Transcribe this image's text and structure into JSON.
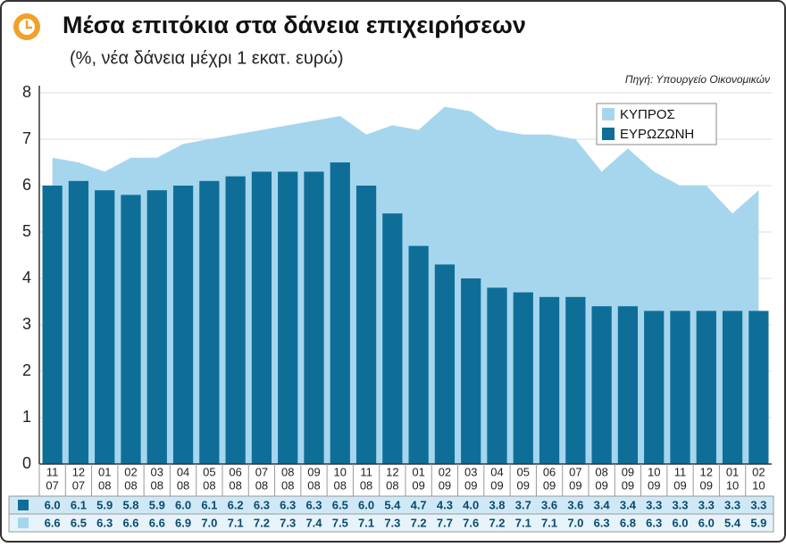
{
  "chart_data": {
    "type": "bar",
    "title": "Μέσα επιτόκια στα δάνεια επιχειρήσεων",
    "subtitle": "(%, νέα δάνεια μέχρι 1 εκατ. ευρώ)",
    "source": "Πηγή: Υπουργείο Οικονομικών",
    "categories": [
      [
        "11",
        "07"
      ],
      [
        "12",
        "07"
      ],
      [
        "01",
        "08"
      ],
      [
        "02",
        "08"
      ],
      [
        "03",
        "08"
      ],
      [
        "04",
        "08"
      ],
      [
        "05",
        "08"
      ],
      [
        "06",
        "08"
      ],
      [
        "07",
        "08"
      ],
      [
        "08",
        "08"
      ],
      [
        "09",
        "08"
      ],
      [
        "10",
        "08"
      ],
      [
        "11",
        "08"
      ],
      [
        "12",
        "08"
      ],
      [
        "01",
        "09"
      ],
      [
        "02",
        "09"
      ],
      [
        "03",
        "09"
      ],
      [
        "04",
        "09"
      ],
      [
        "05",
        "09"
      ],
      [
        "06",
        "09"
      ],
      [
        "07",
        "09"
      ],
      [
        "08",
        "09"
      ],
      [
        "09",
        "09"
      ],
      [
        "10",
        "09"
      ],
      [
        "11",
        "09"
      ],
      [
        "12",
        "09"
      ],
      [
        "01",
        "10"
      ],
      [
        "02",
        "10"
      ]
    ],
    "series": [
      {
        "name": "ΚΥΠΡΟΣ",
        "type": "area",
        "color": "#a6d6ee",
        "values": [
          6.6,
          6.5,
          6.3,
          6.6,
          6.6,
          6.9,
          7.0,
          7.1,
          7.2,
          7.3,
          7.4,
          7.5,
          7.1,
          7.3,
          7.2,
          7.7,
          7.6,
          7.2,
          7.1,
          7.1,
          7.0,
          6.3,
          6.8,
          6.3,
          6.0,
          6.0,
          5.4,
          5.9
        ],
        "value_labels": [
          "6.6",
          "6.5",
          "6.3",
          "6.6",
          "6.6",
          "6.9",
          "7.0",
          "7.1",
          "7.2",
          "7.3",
          "7.4",
          "7.5",
          "7.1",
          "7.3",
          "7.2",
          "7.7",
          "7.6",
          "7.2",
          "7.1",
          "7.1",
          "7.0",
          "6.3",
          "6.8",
          "6.3",
          "6.0",
          "6.0",
          "5.4",
          "5.9"
        ]
      },
      {
        "name": "ΕΥΡΩΖΩΝΗ",
        "type": "bar",
        "color": "#0f6e98",
        "values": [
          6.0,
          6.1,
          5.9,
          5.8,
          5.9,
          6.0,
          6.1,
          6.2,
          6.3,
          6.3,
          6.3,
          6.5,
          6.0,
          5.4,
          4.7,
          4.3,
          4.0,
          3.8,
          3.7,
          3.6,
          3.6,
          3.4,
          3.4,
          3.3,
          3.3,
          3.3,
          3.3,
          3.3
        ],
        "value_labels": [
          "6.0",
          "6.1",
          "5.9",
          "5.8",
          "5.9",
          "6.0",
          "6.1",
          "6.2",
          "6.3",
          "6.3",
          "6.3",
          "6.5",
          "6.0",
          "5.4",
          "4.7",
          "4.3",
          "4.0",
          "3.8",
          "3.7",
          "3.6",
          "3.6",
          "3.4",
          "3.4",
          "3.3",
          "3.3",
          "3.3",
          "3.3",
          "3.3"
        ]
      }
    ],
    "ylim": [
      0,
      8
    ],
    "yticks": [
      0,
      1,
      2,
      3,
      4,
      5,
      6,
      7,
      8
    ],
    "grid": true,
    "legend": "top-right"
  }
}
